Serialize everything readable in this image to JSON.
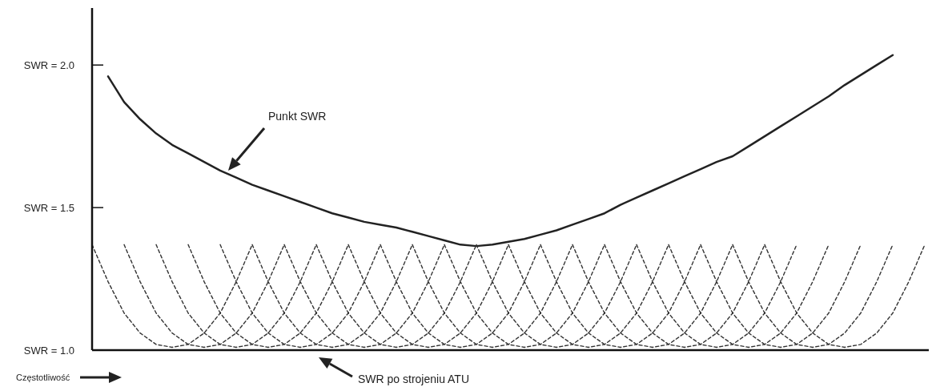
{
  "chart_data": {
    "type": "line",
    "xlabel": "Częstotliwość",
    "ylim": [
      1.0,
      2.2
    ],
    "categories": [
      null,
      null,
      null,
      null,
      null,
      null,
      null,
      null,
      null,
      null,
      null,
      null,
      null,
      null,
      null,
      null,
      null,
      null,
      null,
      null,
      null,
      null,
      null,
      null,
      null,
      null,
      null,
      null,
      null,
      null,
      null,
      null,
      null,
      null,
      null,
      null,
      null,
      null,
      null,
      null,
      null,
      null,
      null,
      null,
      null,
      null,
      null,
      null,
      null,
      null,
      null,
      null,
      null
    ],
    "yticks": [
      {
        "value": 1.0,
        "label": "SWR = 1.0"
      },
      {
        "value": 1.5,
        "label": "SWR = 1.5"
      },
      {
        "value": 2.0,
        "label": "SWR = 2.0"
      }
    ],
    "tick_labels": "y",
    "annotations": [
      "Punkt SWR",
      "SWR po strojeniu ATU"
    ],
    "series": [
      {
        "color": "#222222",
        "line_style": "solid",
        "values": [
          null,
          1.96,
          1.87,
          1.81,
          1.76,
          1.72,
          1.69,
          1.66,
          1.63,
          1.605,
          1.58,
          1.56,
          1.54,
          1.52,
          1.5,
          1.48,
          1.465,
          1.45,
          1.44,
          1.43,
          1.415,
          1.4,
          1.385,
          1.37,
          1.365,
          1.37,
          1.38,
          1.39,
          1.405,
          1.42,
          1.44,
          1.46,
          1.48,
          1.51,
          1.535,
          1.56,
          1.585,
          1.61,
          1.635,
          1.66,
          1.68,
          1.715,
          1.75,
          1.785,
          1.82,
          1.855,
          1.89,
          1.93,
          1.965,
          2.0,
          2.035,
          null,
          null
        ]
      },
      {
        "color": "#333333",
        "line_style": "dashed",
        "values": [
          1.37,
          1.24,
          1.13,
          1.06,
          1.02,
          1.01,
          1.02,
          1.06,
          1.13,
          1.24,
          1.37,
          null,
          null,
          null,
          null,
          null,
          null,
          null,
          null,
          null,
          null,
          null,
          null,
          null,
          null,
          null,
          null,
          null,
          null,
          null,
          null,
          null,
          null,
          null,
          null,
          null,
          null,
          null,
          null,
          null,
          null,
          null,
          null,
          null,
          null,
          null,
          null,
          null,
          null,
          null,
          null,
          null,
          null
        ]
      },
      {
        "color": "#333333",
        "line_style": "dashed",
        "values": [
          null,
          null,
          1.37,
          1.24,
          1.13,
          1.06,
          1.02,
          1.01,
          1.02,
          1.06,
          1.13,
          1.24,
          1.37,
          null,
          null,
          null,
          null,
          null,
          null,
          null,
          null,
          null,
          null,
          null,
          null,
          null,
          null,
          null,
          null,
          null,
          null,
          null,
          null,
          null,
          null,
          null,
          null,
          null,
          null,
          null,
          null,
          null,
          null,
          null,
          null,
          null,
          null,
          null,
          null,
          null,
          null,
          null,
          null
        ]
      },
      {
        "color": "#333333",
        "line_style": "dashed",
        "values": [
          null,
          null,
          null,
          null,
          1.37,
          1.24,
          1.13,
          1.06,
          1.02,
          1.01,
          1.02,
          1.06,
          1.13,
          1.24,
          1.37,
          null,
          null,
          null,
          null,
          null,
          null,
          null,
          null,
          null,
          null,
          null,
          null,
          null,
          null,
          null,
          null,
          null,
          null,
          null,
          null,
          null,
          null,
          null,
          null,
          null,
          null,
          null,
          null,
          null,
          null,
          null,
          null,
          null,
          null,
          null,
          null,
          null,
          null
        ]
      },
      {
        "color": "#333333",
        "line_style": "dashed",
        "values": [
          null,
          null,
          null,
          null,
          null,
          null,
          1.37,
          1.24,
          1.13,
          1.06,
          1.02,
          1.01,
          1.02,
          1.06,
          1.13,
          1.24,
          1.37,
          null,
          null,
          null,
          null,
          null,
          null,
          null,
          null,
          null,
          null,
          null,
          null,
          null,
          null,
          null,
          null,
          null,
          null,
          null,
          null,
          null,
          null,
          null,
          null,
          null,
          null,
          null,
          null,
          null,
          null,
          null,
          null,
          null,
          null,
          null,
          null
        ]
      },
      {
        "color": "#333333",
        "line_style": "dashed",
        "values": [
          null,
          null,
          null,
          null,
          null,
          null,
          null,
          null,
          1.37,
          1.24,
          1.13,
          1.06,
          1.02,
          1.01,
          1.02,
          1.06,
          1.13,
          1.24,
          1.37,
          null,
          null,
          null,
          null,
          null,
          null,
          null,
          null,
          null,
          null,
          null,
          null,
          null,
          null,
          null,
          null,
          null,
          null,
          null,
          null,
          null,
          null,
          null,
          null,
          null,
          null,
          null,
          null,
          null,
          null,
          null,
          null,
          null,
          null
        ]
      },
      {
        "color": "#333333",
        "line_style": "dashed",
        "values": [
          null,
          null,
          null,
          null,
          null,
          null,
          null,
          null,
          null,
          null,
          1.37,
          1.24,
          1.13,
          1.06,
          1.02,
          1.01,
          1.02,
          1.06,
          1.13,
          1.24,
          1.37,
          null,
          null,
          null,
          null,
          null,
          null,
          null,
          null,
          null,
          null,
          null,
          null,
          null,
          null,
          null,
          null,
          null,
          null,
          null,
          null,
          null,
          null,
          null,
          null,
          null,
          null,
          null,
          null,
          null,
          null,
          null,
          null
        ]
      },
      {
        "color": "#333333",
        "line_style": "dashed",
        "values": [
          null,
          null,
          null,
          null,
          null,
          null,
          null,
          null,
          null,
          null,
          null,
          null,
          1.37,
          1.24,
          1.13,
          1.06,
          1.02,
          1.01,
          1.02,
          1.06,
          1.13,
          1.24,
          1.37,
          null,
          null,
          null,
          null,
          null,
          null,
          null,
          null,
          null,
          null,
          null,
          null,
          null,
          null,
          null,
          null,
          null,
          null,
          null,
          null,
          null,
          null,
          null,
          null,
          null,
          null,
          null,
          null,
          null,
          null
        ]
      },
      {
        "color": "#333333",
        "line_style": "dashed",
        "values": [
          null,
          null,
          null,
          null,
          null,
          null,
          null,
          null,
          null,
          null,
          null,
          null,
          null,
          null,
          1.37,
          1.24,
          1.13,
          1.06,
          1.02,
          1.01,
          1.02,
          1.06,
          1.13,
          1.24,
          1.37,
          null,
          null,
          null,
          null,
          null,
          null,
          null,
          null,
          null,
          null,
          null,
          null,
          null,
          null,
          null,
          null,
          null,
          null,
          null,
          null,
          null,
          null,
          null,
          null,
          null,
          null,
          null,
          null
        ]
      },
      {
        "color": "#333333",
        "line_style": "dashed",
        "values": [
          null,
          null,
          null,
          null,
          null,
          null,
          null,
          null,
          null,
          null,
          null,
          null,
          null,
          null,
          null,
          null,
          1.37,
          1.24,
          1.13,
          1.06,
          1.02,
          1.01,
          1.02,
          1.06,
          1.13,
          1.24,
          1.37,
          null,
          null,
          null,
          null,
          null,
          null,
          null,
          null,
          null,
          null,
          null,
          null,
          null,
          null,
          null,
          null,
          null,
          null,
          null,
          null,
          null,
          null,
          null,
          null,
          null,
          null
        ]
      },
      {
        "color": "#333333",
        "line_style": "dashed",
        "values": [
          null,
          null,
          null,
          null,
          null,
          null,
          null,
          null,
          null,
          null,
          null,
          null,
          null,
          null,
          null,
          null,
          null,
          null,
          1.37,
          1.24,
          1.13,
          1.06,
          1.02,
          1.01,
          1.02,
          1.06,
          1.13,
          1.24,
          1.37,
          null,
          null,
          null,
          null,
          null,
          null,
          null,
          null,
          null,
          null,
          null,
          null,
          null,
          null,
          null,
          null,
          null,
          null,
          null,
          null,
          null,
          null,
          null,
          null
        ]
      },
      {
        "color": "#333333",
        "line_style": "dashed",
        "values": [
          null,
          null,
          null,
          null,
          null,
          null,
          null,
          null,
          null,
          null,
          null,
          null,
          null,
          null,
          null,
          null,
          null,
          null,
          null,
          null,
          1.37,
          1.24,
          1.13,
          1.06,
          1.02,
          1.01,
          1.02,
          1.06,
          1.13,
          1.24,
          1.37,
          null,
          null,
          null,
          null,
          null,
          null,
          null,
          null,
          null,
          null,
          null,
          null,
          null,
          null,
          null,
          null,
          null,
          null,
          null,
          null,
          null,
          null
        ]
      },
      {
        "color": "#333333",
        "line_style": "dashed",
        "values": [
          null,
          null,
          null,
          null,
          null,
          null,
          null,
          null,
          null,
          null,
          null,
          null,
          null,
          null,
          null,
          null,
          null,
          null,
          null,
          null,
          null,
          null,
          1.37,
          1.24,
          1.13,
          1.06,
          1.02,
          1.01,
          1.02,
          1.06,
          1.13,
          1.24,
          1.37,
          null,
          null,
          null,
          null,
          null,
          null,
          null,
          null,
          null,
          null,
          null,
          null,
          null,
          null,
          null,
          null,
          null,
          null,
          null,
          null
        ]
      },
      {
        "color": "#333333",
        "line_style": "dashed",
        "values": [
          null,
          null,
          null,
          null,
          null,
          null,
          null,
          null,
          null,
          null,
          null,
          null,
          null,
          null,
          null,
          null,
          null,
          null,
          null,
          null,
          null,
          null,
          null,
          null,
          1.37,
          1.24,
          1.13,
          1.06,
          1.02,
          1.01,
          1.02,
          1.06,
          1.13,
          1.24,
          1.37,
          null,
          null,
          null,
          null,
          null,
          null,
          null,
          null,
          null,
          null,
          null,
          null,
          null,
          null,
          null,
          null,
          null,
          null
        ]
      },
      {
        "color": "#333333",
        "line_style": "dashed",
        "values": [
          null,
          null,
          null,
          null,
          null,
          null,
          null,
          null,
          null,
          null,
          null,
          null,
          null,
          null,
          null,
          null,
          null,
          null,
          null,
          null,
          null,
          null,
          null,
          null,
          null,
          null,
          1.37,
          1.24,
          1.13,
          1.06,
          1.02,
          1.01,
          1.02,
          1.06,
          1.13,
          1.24,
          1.37,
          null,
          null,
          null,
          null,
          null,
          null,
          null,
          null,
          null,
          null,
          null,
          null,
          null,
          null,
          null,
          null
        ]
      },
      {
        "color": "#333333",
        "line_style": "dashed",
        "values": [
          null,
          null,
          null,
          null,
          null,
          null,
          null,
          null,
          null,
          null,
          null,
          null,
          null,
          null,
          null,
          null,
          null,
          null,
          null,
          null,
          null,
          null,
          null,
          null,
          null,
          null,
          null,
          null,
          1.37,
          1.24,
          1.13,
          1.06,
          1.02,
          1.01,
          1.02,
          1.06,
          1.13,
          1.24,
          1.37,
          null,
          null,
          null,
          null,
          null,
          null,
          null,
          null,
          null,
          null,
          null,
          null,
          null,
          null
        ]
      },
      {
        "color": "#333333",
        "line_style": "dashed",
        "values": [
          null,
          null,
          null,
          null,
          null,
          null,
          null,
          null,
          null,
          null,
          null,
          null,
          null,
          null,
          null,
          null,
          null,
          null,
          null,
          null,
          null,
          null,
          null,
          null,
          null,
          null,
          null,
          null,
          null,
          null,
          1.37,
          1.24,
          1.13,
          1.06,
          1.02,
          1.01,
          1.02,
          1.06,
          1.13,
          1.24,
          1.37,
          null,
          null,
          null,
          null,
          null,
          null,
          null,
          null,
          null,
          null,
          null,
          null
        ]
      },
      {
        "color": "#333333",
        "line_style": "dashed",
        "values": [
          null,
          null,
          null,
          null,
          null,
          null,
          null,
          null,
          null,
          null,
          null,
          null,
          null,
          null,
          null,
          null,
          null,
          null,
          null,
          null,
          null,
          null,
          null,
          null,
          null,
          null,
          null,
          null,
          null,
          null,
          null,
          null,
          1.37,
          1.24,
          1.13,
          1.06,
          1.02,
          1.01,
          1.02,
          1.06,
          1.13,
          1.24,
          1.37,
          null,
          null,
          null,
          null,
          null,
          null,
          null,
          null,
          null,
          null
        ]
      },
      {
        "color": "#333333",
        "line_style": "dashed",
        "values": [
          null,
          null,
          null,
          null,
          null,
          null,
          null,
          null,
          null,
          null,
          null,
          null,
          null,
          null,
          null,
          null,
          null,
          null,
          null,
          null,
          null,
          null,
          null,
          null,
          null,
          null,
          null,
          null,
          null,
          null,
          null,
          null,
          null,
          null,
          1.37,
          1.24,
          1.13,
          1.06,
          1.02,
          1.01,
          1.02,
          1.06,
          1.13,
          1.24,
          1.37,
          null,
          null,
          null,
          null,
          null,
          null,
          null,
          null
        ]
      },
      {
        "color": "#333333",
        "line_style": "dashed",
        "values": [
          null,
          null,
          null,
          null,
          null,
          null,
          null,
          null,
          null,
          null,
          null,
          null,
          null,
          null,
          null,
          null,
          null,
          null,
          null,
          null,
          null,
          null,
          null,
          null,
          null,
          null,
          null,
          null,
          null,
          null,
          null,
          null,
          null,
          null,
          null,
          null,
          1.37,
          1.24,
          1.13,
          1.06,
          1.02,
          1.01,
          1.02,
          1.06,
          1.13,
          1.24,
          1.37,
          null,
          null,
          null,
          null,
          null,
          null
        ]
      },
      {
        "color": "#333333",
        "line_style": "dashed",
        "values": [
          null,
          null,
          null,
          null,
          null,
          null,
          null,
          null,
          null,
          null,
          null,
          null,
          null,
          null,
          null,
          null,
          null,
          null,
          null,
          null,
          null,
          null,
          null,
          null,
          null,
          null,
          null,
          null,
          null,
          null,
          null,
          null,
          null,
          null,
          null,
          null,
          null,
          null,
          1.37,
          1.24,
          1.13,
          1.06,
          1.02,
          1.01,
          1.02,
          1.06,
          1.13,
          1.24,
          1.37,
          null,
          null,
          null,
          null
        ]
      },
      {
        "color": "#333333",
        "line_style": "dashed",
        "values": [
          null,
          null,
          null,
          null,
          null,
          null,
          null,
          null,
          null,
          null,
          null,
          null,
          null,
          null,
          null,
          null,
          null,
          null,
          null,
          null,
          null,
          null,
          null,
          null,
          null,
          null,
          null,
          null,
          null,
          null,
          null,
          null,
          null,
          null,
          null,
          null,
          null,
          null,
          null,
          null,
          1.37,
          1.24,
          1.13,
          1.06,
          1.02,
          1.01,
          1.02,
          1.06,
          1.13,
          1.24,
          1.37,
          null,
          null
        ]
      },
      {
        "color": "#333333",
        "line_style": "dashed",
        "values": [
          null,
          null,
          null,
          null,
          null,
          null,
          null,
          null,
          null,
          null,
          null,
          null,
          null,
          null,
          null,
          null,
          null,
          null,
          null,
          null,
          null,
          null,
          null,
          null,
          null,
          null,
          null,
          null,
          null,
          null,
          null,
          null,
          null,
          null,
          null,
          null,
          null,
          null,
          null,
          null,
          null,
          null,
          1.37,
          1.24,
          1.13,
          1.06,
          1.02,
          1.01,
          1.02,
          1.06,
          1.13,
          1.24,
          1.37
        ]
      }
    ]
  }
}
